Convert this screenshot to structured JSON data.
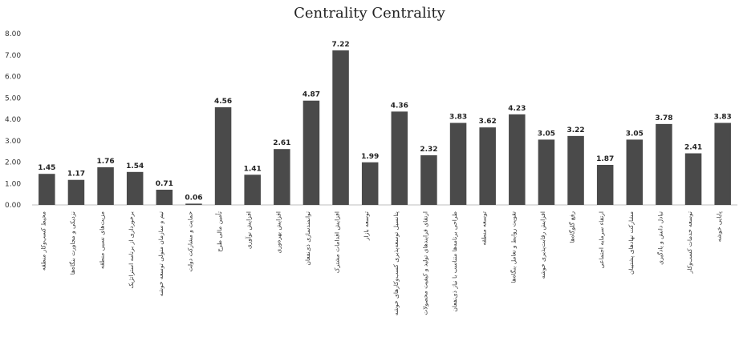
{
  "chart_data": {
    "type": "bar",
    "title": "Centrality  Centrality",
    "xlabel": "",
    "ylabel": "",
    "ylim": [
      0,
      8
    ],
    "yticks": [
      "0.00",
      "1.00",
      "2.00",
      "3.00",
      "4.00",
      "5.00",
      "6.00",
      "7.00",
      "8.00"
    ],
    "grid": false,
    "legend": "none",
    "bar_color": "#4a4a4a",
    "categories": [
      "محیط کسب‌وکار منطقه",
      "نزدیکی و مجاورت بنگاه‌ها",
      "مزیت‌های نسبی منطقه",
      "برخورداری از برنامه استراتژیک",
      "تیم و سازمان متولی توسعه خوشه",
      "حمایت و مشارکت دولت",
      "تأمین مالی طرح",
      "افزایش نوآوری",
      "افزایش بهره‌وری",
      "توانمندسازی ذی‌نفعان",
      "افزایش اقدامات مشترک",
      "توسعه بازار",
      "پتانسیل توسعه‌پذیری کسب‌وکارهای خوشه",
      "ارتقای فرایندهای تولید و کیفیت محصولات",
      "طراحی برنامه‌ها متناسب با نیاز ذی‌نفعان",
      "توسعه منطقه",
      "تقویت روابط و تعامل بنگاه‌ها",
      "افزایش رقابت‌پذیری خوشه",
      "رفع گلوگاه‌ها",
      "ارتقاء سرمایه اجتماعی",
      "مشارکت نهادهای پشتیبان",
      "تبادل دانش و یادگیری",
      "توسعه خدمات کسب‌وکار",
      "پایایی خوشه"
    ],
    "values": [
      1.45,
      1.17,
      1.76,
      1.54,
      0.71,
      0.06,
      4.56,
      1.41,
      2.61,
      4.87,
      7.22,
      1.99,
      4.36,
      2.32,
      3.83,
      3.62,
      4.23,
      3.05,
      3.22,
      1.87,
      3.05,
      3.78,
      2.41,
      3.83
    ],
    "data_labels": [
      "1.45",
      "1.17",
      "1.76",
      "1.54",
      "0.71",
      "0.06",
      "4.56",
      "1.41",
      "2.61",
      "4.87",
      "7.22",
      "1.99",
      "4.36",
      "2.32",
      "3.83",
      "3.62",
      "4.23",
      "3.05",
      "3.22",
      "1.87",
      "3.05",
      "3.78",
      "2.41",
      "3.83"
    ]
  }
}
